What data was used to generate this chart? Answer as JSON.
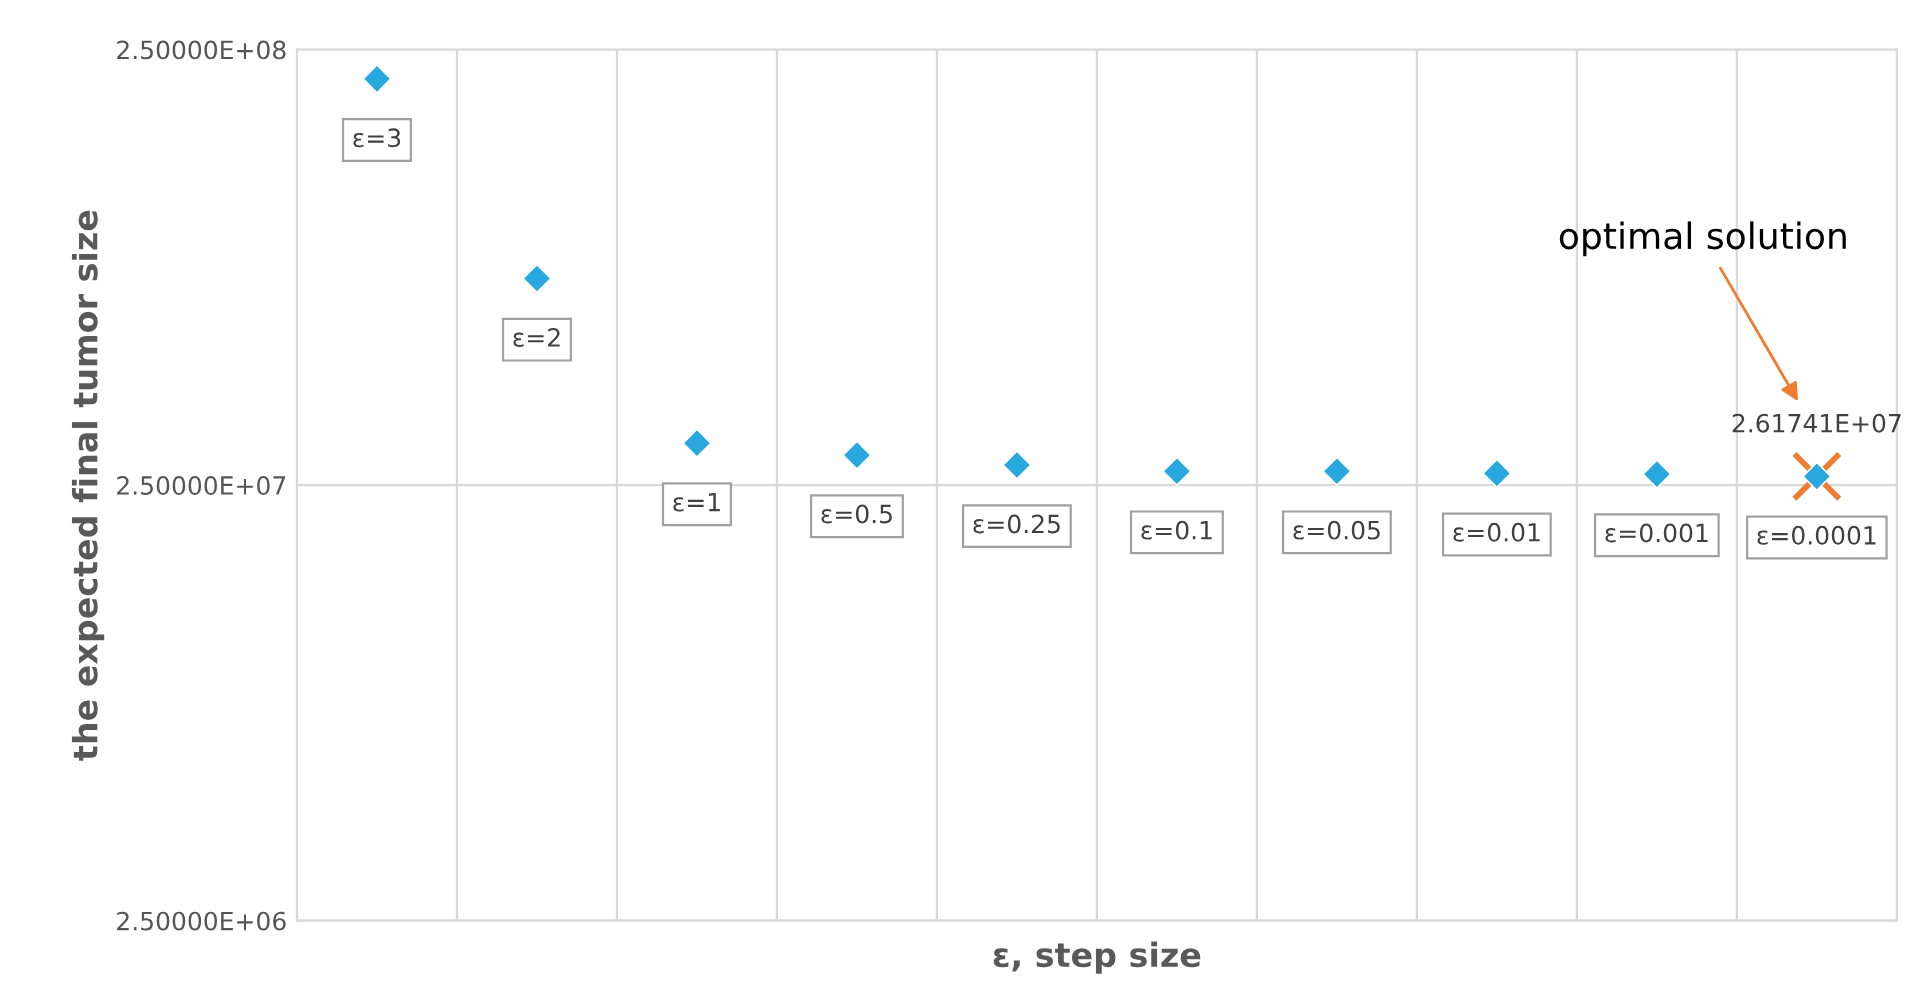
{
  "chart_data": {
    "type": "scatter",
    "xlabel": "ε, step size",
    "ylabel": "the expected final tumor size",
    "categories": [
      null,
      null,
      null,
      null,
      null,
      null,
      null,
      null,
      null,
      null
    ],
    "series": [
      {
        "color": "#29a8e0",
        "marker": "diamond",
        "values": [
          214000000,
          74500000,
          31200000,
          29300000,
          27800000,
          26900000,
          26900000,
          26600000,
          26500000,
          26174100
        ]
      },
      {
        "color": "#ed7d31",
        "marker": "cross",
        "values": [
          null,
          null,
          null,
          null,
          null,
          null,
          null,
          null,
          null,
          26174100
        ],
        "value_labels": [
          null,
          null,
          null,
          null,
          null,
          null,
          null,
          null,
          null,
          "2.61741E+07"
        ]
      }
    ],
    "annotations": [
      {
        "text": "ε=3",
        "y": 214000000
      },
      {
        "text": "ε=2",
        "y": 74500000
      },
      {
        "text": "ε=1",
        "y": 31200000
      },
      {
        "text": "ε=0.5",
        "y": 29300000
      },
      {
        "text": "ε=0.25",
        "y": 27800000
      },
      {
        "text": "ε=0.1",
        "y": 26900000
      },
      {
        "text": "ε=0.05",
        "y": 26900000
      },
      {
        "text": "ε=0.01",
        "y": 26600000
      },
      {
        "text": "ε=0.001",
        "y": 26500000
      },
      {
        "text": "ε=0.0001",
        "y": 26174100
      },
      "optimal solution"
    ],
    "log": "y",
    "ylim": [
      2500000,
      250000000
    ],
    "yticks": [
      {
        "value": 2500000,
        "label": "2.50000E+06"
      },
      {
        "value": 25000000,
        "label": "2.50000E+07"
      },
      {
        "value": 250000000,
        "label": "2.50000E+08"
      }
    ],
    "grid": true,
    "legend": false
  }
}
